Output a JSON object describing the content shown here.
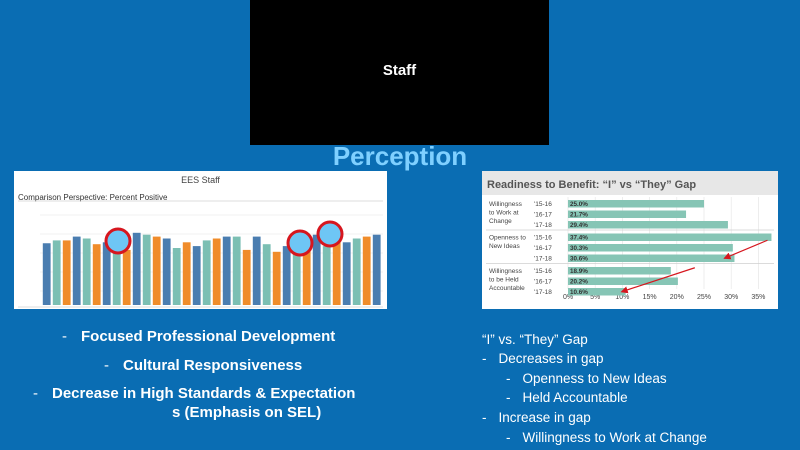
{
  "video": {
    "participant_name": "Staff"
  },
  "slide": {
    "title": "Perception",
    "left_bullets": [
      "Focused Professional Development",
      "Cultural Responsiveness",
      "Decrease in High Standards &  Expectation",
      "s (Emphasis on SEL)"
    ],
    "right_bullets": [
      {
        "text": "“I” vs. “They” Gap",
        "level": 0
      },
      {
        "text": "Decreases in gap",
        "level": 1
      },
      {
        "text": "Openness to New Ideas",
        "level": 2
      },
      {
        "text": "Held Accountable",
        "level": 2
      },
      {
        "text": "Increase in gap",
        "level": 1
      },
      {
        "text": "Willingness to Work at Change",
        "level": 2
      }
    ]
  },
  "left_chart": {
    "title": "EES Staff",
    "subtitle": "Comparison Perspective: Percent Positive",
    "colors": [
      "#4a7db0",
      "#7bbfb3",
      "#f08c2a"
    ],
    "highlight_color": "#6ec6f5",
    "highlight_ring": "#d6161e"
  },
  "chart_data": {
    "type": "bar",
    "title": "Readiness to Benefit: “I” vs “They” Gap",
    "groups": [
      {
        "label": [
          "Willingness",
          "to Work at",
          "Change"
        ],
        "rows": [
          {
            "year": "'15-16",
            "value": 25.0,
            "label": "25.0%"
          },
          {
            "year": "'16-17",
            "value": 21.7,
            "label": "21.7%"
          },
          {
            "year": "'17-18",
            "value": 29.4,
            "label": "29.4%"
          }
        ]
      },
      {
        "label": [
          "Openness to",
          "New Ideas"
        ],
        "rows": [
          {
            "year": "'15-16",
            "value": 37.4,
            "label": "37.4%"
          },
          {
            "year": "'16-17",
            "value": 30.3,
            "label": "30.3%"
          },
          {
            "year": "'17-18",
            "value": 30.6,
            "label": "30.6%"
          }
        ]
      },
      {
        "label": [
          "Willingness",
          "to be Held",
          "Accountable"
        ],
        "rows": [
          {
            "year": "'15-16",
            "value": 18.9,
            "label": "18.9%"
          },
          {
            "year": "'16-17",
            "value": 20.2,
            "label": "20.2%"
          },
          {
            "year": "'17-18",
            "value": 10.6,
            "label": "10.6%"
          }
        ]
      }
    ],
    "xticks": [
      "0%",
      "5%",
      "10%",
      "15%",
      "20%",
      "25%",
      "30%",
      "35%"
    ],
    "xlim": [
      0,
      37.5
    ],
    "bar_color": "#86c5b5",
    "arrow_color": "#d6161e"
  }
}
